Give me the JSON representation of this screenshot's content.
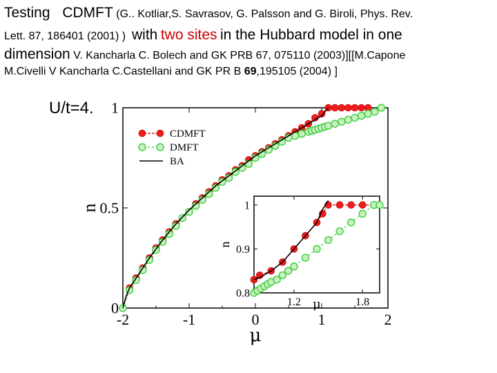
{
  "text": {
    "line1": {
      "a": "Testing",
      "b": "CDMFT",
      "c": "(G.. Kotliar,S. Savrasov, G. Palsson and G. Biroli, Phys. Rev."
    },
    "line2": {
      "a": "Lett. 87, 186401 (2001) )",
      "b": "with",
      "c": "two sites",
      "d": "in  the Hubbard model in one"
    },
    "line3": {
      "a": "dimension",
      "b": "V. Kancharla C. Bolech and GK  PRB 67, 075110 (2003)][[M.Capone"
    },
    "line4": {
      "a": "M.Civelli  V Kancharla C.Castellani and GK  PR B",
      "b": "69",
      "c": ",195105 (2004) ]"
    }
  },
  "colors": {
    "cdmft": "#ee1c1c",
    "dmft": "#33cc33",
    "dmft_fill": "#c8f0c0",
    "ba": "#000000",
    "highlight_text": "#cc0000"
  },
  "chart_data": [
    {
      "type": "line",
      "title": "U/t=4.",
      "xlabel": "μ",
      "ylabel": "n",
      "xlim": [
        -2,
        2
      ],
      "ylim": [
        0,
        1
      ],
      "xticks": [
        "-2",
        "-1",
        "0",
        "1",
        "2"
      ],
      "yticks": [
        "0",
        "0.5",
        "1"
      ],
      "legend": {
        "placement": "top-left",
        "entries": [
          "CDMFT",
          "DMFT",
          "BA"
        ]
      },
      "series": [
        {
          "name": "CDMFT",
          "x": [
            -2.0,
            -1.9,
            -1.8,
            -1.7,
            -1.6,
            -1.5,
            -1.4,
            -1.3,
            -1.2,
            -1.1,
            -1.0,
            -0.9,
            -0.8,
            -0.7,
            -0.6,
            -0.5,
            -0.4,
            -0.3,
            -0.2,
            -0.1,
            0.0,
            0.1,
            0.2,
            0.3,
            0.4,
            0.5,
            0.6,
            0.7,
            0.8,
            0.9,
            1.0,
            1.1,
            1.2,
            1.3,
            1.4,
            1.5,
            1.6,
            1.7
          ],
          "y": [
            0.0,
            0.1,
            0.15,
            0.2,
            0.25,
            0.3,
            0.34,
            0.38,
            0.42,
            0.45,
            0.48,
            0.52,
            0.55,
            0.58,
            0.61,
            0.64,
            0.66,
            0.69,
            0.71,
            0.74,
            0.76,
            0.78,
            0.8,
            0.82,
            0.84,
            0.86,
            0.88,
            0.9,
            0.92,
            0.95,
            0.97,
            1.0,
            1.0,
            1.0,
            1.0,
            1.0,
            1.0,
            1.0
          ]
        },
        {
          "name": "DMFT",
          "x": [
            -2.0,
            -1.9,
            -1.8,
            -1.7,
            -1.6,
            -1.5,
            -1.4,
            -1.3,
            -1.2,
            -1.1,
            -1.0,
            -0.9,
            -0.8,
            -0.7,
            -0.6,
            -0.5,
            -0.4,
            -0.3,
            -0.2,
            -0.1,
            0.0,
            0.1,
            0.2,
            0.3,
            0.4,
            0.5,
            0.6,
            0.7,
            0.8,
            0.85,
            0.9,
            0.95,
            1.0,
            1.05,
            1.1,
            1.2,
            1.3,
            1.4,
            1.5,
            1.6,
            1.7,
            1.8,
            1.9
          ],
          "y": [
            0.0,
            0.09,
            0.14,
            0.19,
            0.24,
            0.29,
            0.33,
            0.37,
            0.41,
            0.45,
            0.48,
            0.51,
            0.54,
            0.57,
            0.6,
            0.63,
            0.65,
            0.68,
            0.7,
            0.72,
            0.75,
            0.77,
            0.79,
            0.81,
            0.83,
            0.85,
            0.86,
            0.87,
            0.88,
            0.885,
            0.89,
            0.895,
            0.9,
            0.905,
            0.91,
            0.92,
            0.93,
            0.94,
            0.95,
            0.96,
            0.97,
            0.98,
            1.0
          ]
        },
        {
          "name": "BA",
          "x": [
            -2.0,
            -1.95,
            -1.9,
            -1.8,
            -1.6,
            -1.4,
            -1.2,
            -1.0,
            -0.8,
            -0.6,
            -0.4,
            -0.2,
            0.0,
            0.2,
            0.4,
            0.6,
            0.8,
            1.0,
            1.1
          ],
          "y": [
            0.0,
            0.06,
            0.1,
            0.15,
            0.25,
            0.34,
            0.42,
            0.49,
            0.55,
            0.61,
            0.66,
            0.71,
            0.76,
            0.8,
            0.84,
            0.88,
            0.92,
            0.96,
            1.0
          ]
        }
      ]
    },
    {
      "type": "line",
      "title": "",
      "xlabel": "μ",
      "ylabel": "n",
      "xlim": [
        0.85,
        1.95
      ],
      "ylim": [
        0.8,
        1.02
      ],
      "xticks": [
        "1.2",
        "1.8"
      ],
      "yticks": [
        "0.8",
        "0.9",
        "1"
      ],
      "series": [
        {
          "name": "CDMFT",
          "x": [
            0.85,
            0.9,
            1.0,
            1.1,
            1.2,
            1.3,
            1.4,
            1.45,
            1.5,
            1.6,
            1.7,
            1.8,
            1.9
          ],
          "y": [
            0.83,
            0.84,
            0.85,
            0.87,
            0.9,
            0.93,
            0.96,
            0.98,
            1.0,
            1.0,
            1.0,
            1.0,
            1.0
          ]
        },
        {
          "name": "DMFT",
          "x": [
            0.85,
            0.88,
            0.91,
            0.94,
            0.97,
            1.0,
            1.05,
            1.1,
            1.15,
            1.2,
            1.3,
            1.4,
            1.5,
            1.6,
            1.7,
            1.8,
            1.9,
            1.95
          ],
          "y": [
            0.8,
            0.805,
            0.81,
            0.815,
            0.82,
            0.825,
            0.83,
            0.84,
            0.85,
            0.86,
            0.88,
            0.9,
            0.92,
            0.94,
            0.96,
            0.98,
            1.0,
            1.0
          ]
        },
        {
          "name": "BA",
          "x": [
            0.85,
            0.9,
            1.0,
            1.1,
            1.2,
            1.3,
            1.4,
            1.45,
            1.5
          ],
          "y": [
            0.83,
            0.835,
            0.85,
            0.87,
            0.9,
            0.93,
            0.96,
            0.99,
            1.01
          ]
        }
      ]
    }
  ]
}
